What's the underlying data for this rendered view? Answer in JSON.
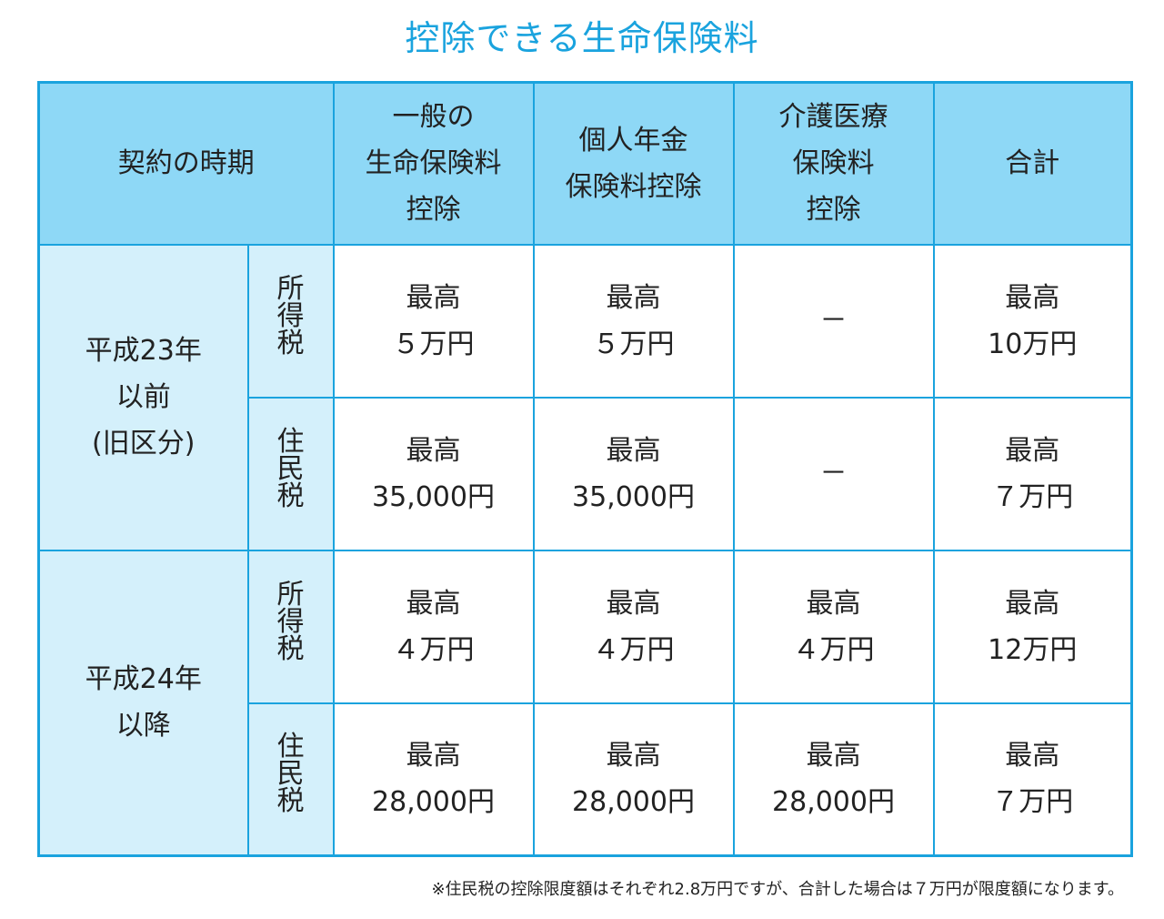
{
  "title": "控除できる生命保険料",
  "header": {
    "period": "契約の時期",
    "general": "一般の\n生命保険料\n控除",
    "pension": "個人年金\n保険料控除",
    "care": "介護医療\n保険料\n控除",
    "total": "合計"
  },
  "groups": [
    {
      "period": "平成23年\n以前\n(旧区分)",
      "rows": [
        {
          "tax": "所得税",
          "general": "最高\n５万円",
          "pension": "最高\n５万円",
          "care": "－",
          "total": "最高\n10万円"
        },
        {
          "tax": "住民税",
          "general": "最高\n35,000円",
          "pension": "最高\n35,000円",
          "care": "－",
          "total": "最高\n７万円"
        }
      ]
    },
    {
      "period": "平成24年\n以降",
      "rows": [
        {
          "tax": "所得税",
          "general": "最高\n４万円",
          "pension": "最高\n４万円",
          "care": "最高\n４万円",
          "total": "最高\n12万円"
        },
        {
          "tax": "住民税",
          "general": "最高\n28,000円",
          "pension": "最高\n28,000円",
          "care": "最高\n28,000円",
          "total": "最高\n７万円"
        }
      ]
    }
  ],
  "note": "※住民税の控除限度額はそれぞれ2.8万円ですが、合計した場合は７万円が限度額になります。",
  "colors": {
    "accent": "#1aa3de",
    "header_bg": "#8ed8f6",
    "label_bg": "#d4f0fb"
  }
}
